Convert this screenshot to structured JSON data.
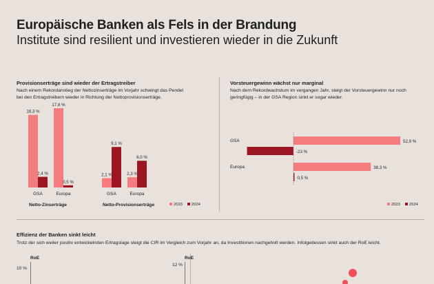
{
  "header": {
    "title": "Europäische Banken als Fels in der Brandung",
    "subtitle": "Institute sind resilient und investieren wieder in die Zukunft"
  },
  "colors": {
    "c2023": "#f47b7e",
    "c2024": "#9b1522",
    "background": "#e8e1dc"
  },
  "left_panel": {
    "title": "Provisionserträge sind wieder der Ertragstreiber",
    "text_line1": "Nach einem Rekordanstieg der Nettozinserträge im Vorjahr schwingt das Pendel",
    "text_line2": "bei den Ertragstreibern wieder in Richtung der Nettoprovisionserträge.",
    "group1_label": "Netto-Zinserträge",
    "group2_label": "Netto-Provisionserträge",
    "legend": [
      "2023",
      "2024"
    ]
  },
  "right_panel": {
    "title": "Vorsteuergewinn wächst nur marginal",
    "text_line1": "Nach dem Rekordwachstum im vergangen Jahr, steigt der Vorsteuergewinn nur noch",
    "text_line2": "geringfügig – in der GSA Region sinkt er sogar wieder.",
    "legend": [
      "2023",
      "2024"
    ]
  },
  "bottom_panel": {
    "title": "Effizienz der Banken sinkt leicht",
    "text": "Trotz der sich weiter positiv entwickelnden Ertragslage steigt die CIR im Vergleich zum Vorjahr an, da Investitionen nachgeholt werden. Infolgedessen sinkt auch der RoE leicht.",
    "left_axis_title": "RoE",
    "left_axis_tick": "10 %",
    "right_axis_title": "RoE",
    "right_axis_tick": "12 %"
  },
  "chart_data": [
    {
      "type": "bar",
      "title": "Netto-Zinserträge",
      "categories": [
        "GSA",
        "Europa"
      ],
      "series": [
        {
          "name": "2023",
          "values": [
            16.3,
            17.8
          ],
          "labels": [
            "16,3 %",
            "17,8 %"
          ]
        },
        {
          "name": "2024",
          "values": [
            2.4,
            0.5
          ],
          "labels": [
            "2,4 %",
            "0,5 %"
          ]
        }
      ],
      "unit": "%"
    },
    {
      "type": "bar",
      "title": "Netto-Provisionserträge",
      "categories": [
        "GSA",
        "Europa"
      ],
      "series": [
        {
          "name": "2023",
          "values": [
            2.1,
            2.3
          ],
          "labels": [
            "2,1 %",
            "2,3 %"
          ]
        },
        {
          "name": "2024",
          "values": [
            9.1,
            6.0
          ],
          "labels": [
            "9,1 %",
            "6,0 %"
          ]
        }
      ],
      "unit": "%"
    },
    {
      "type": "bar",
      "orientation": "horizontal",
      "title": "Vorsteuergewinn",
      "categories": [
        "GSA",
        "Europa"
      ],
      "series": [
        {
          "name": "2023",
          "values": [
            52.9,
            38.3
          ],
          "labels": [
            "52,9 %",
            "38,3 %"
          ]
        },
        {
          "name": "2024",
          "values": [
            -23,
            0.5
          ],
          "labels": [
            "-23 %",
            "0,5 %"
          ]
        }
      ],
      "unit": "%"
    }
  ]
}
